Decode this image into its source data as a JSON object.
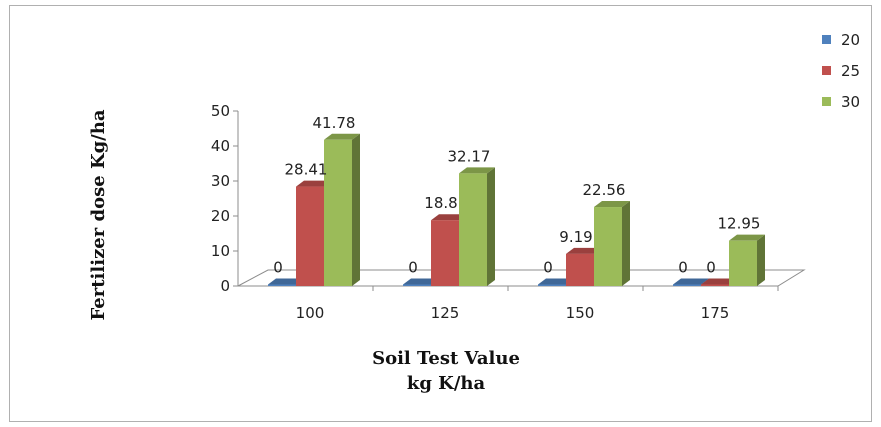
{
  "chart_data": {
    "type": "bar",
    "categories": [
      "100",
      "125",
      "150",
      "175"
    ],
    "series": [
      {
        "name": "20",
        "values": [
          0,
          0,
          0,
          0
        ],
        "color": "#4F81BD"
      },
      {
        "name": "25",
        "values": [
          28.41,
          18.8,
          9.19,
          0
        ],
        "color": "#C0504D"
      },
      {
        "name": "30",
        "values": [
          41.78,
          32.17,
          22.56,
          12.95
        ],
        "color": "#9BBB59"
      }
    ],
    "data_labels": [
      [
        "0",
        "0",
        "0",
        "0"
      ],
      [
        "28.41",
        "18.8",
        "9.19",
        "0"
      ],
      [
        "41.78",
        "32.17",
        "22.56",
        "12.95"
      ]
    ],
    "title": "",
    "xlabel_line1": "Soil Test Value",
    "xlabel_line2": "kg K/ha",
    "ylabel": "Fertilizer dose Kg/ha",
    "ylim": [
      0,
      50
    ],
    "yticks": [
      "0",
      "10",
      "20",
      "30",
      "40",
      "50"
    ],
    "legend_position": "top-right",
    "grid": false,
    "style": "3d-clustered-column"
  }
}
